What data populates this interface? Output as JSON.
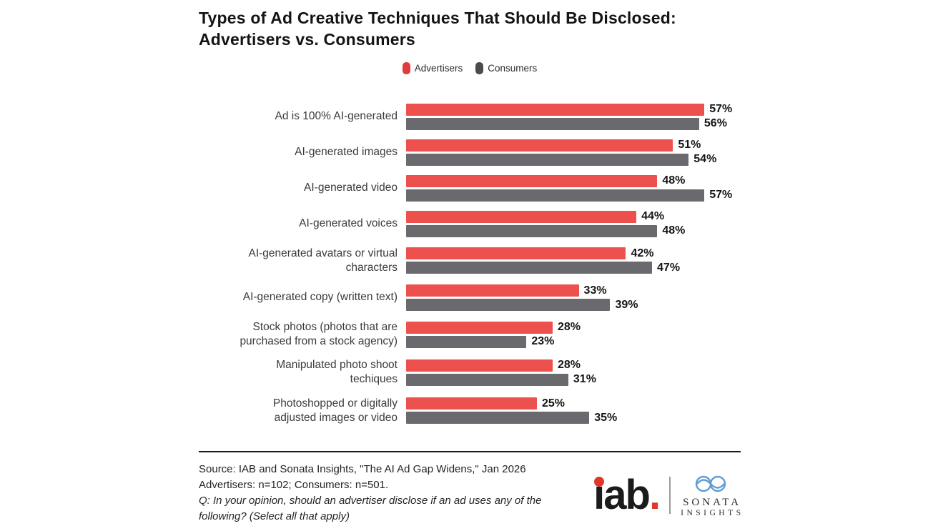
{
  "title": "Types of Ad Creative Techniques That Should Be Disclosed:\nAdvertisers vs. Consumers",
  "legend": [
    {
      "label": "Advertisers",
      "color": "#e13b3c"
    },
    {
      "label": "Consumers",
      "color": "#4b4a4e"
    }
  ],
  "chart_data": {
    "type": "bar",
    "orientation": "horizontal",
    "title": "Types of Ad Creative Techniques That Should Be Disclosed: Advertisers vs. Consumers",
    "categories": [
      "Ad is 100% AI-generated",
      "AI-generated images",
      "AI-generated video",
      "AI-generated voices",
      "AI-generated avatars or virtual\ncharacters",
      "AI-generated copy (written text)",
      "Stock photos (photos that are\npurchased from a stock agency)",
      "Manipulated photo shoot\ntechiques",
      "Photoshopped or digitally\nadjusted images or video"
    ],
    "series": [
      {
        "name": "Advertisers",
        "color": "#ec514e",
        "values": [
          57,
          51,
          48,
          44,
          42,
          33,
          28,
          28,
          25
        ]
      },
      {
        "name": "Consumers",
        "color": "#6a696d",
        "values": [
          56,
          54,
          57,
          48,
          47,
          39,
          23,
          31,
          35
        ]
      }
    ],
    "value_suffix": "%",
    "xlim": [
      0,
      60
    ],
    "grid": false,
    "legend_position": "top-center"
  },
  "footer": {
    "source_line1": "Source: IAB and Sonata Insights, \"The AI Ad Gap Widens,\" Jan 2026",
    "source_line2": "Advertisers: n=102; Consumers: n=501.",
    "question": "Q: In your opinion, should an advertiser disclose if an ad uses any of the following? (Select all that apply)"
  },
  "logos": {
    "iab_text": "iab",
    "iab_period": ".",
    "sonata_line1": "SONATA",
    "sonata_line2": "INSIGHTS",
    "iab_red": "#e2372c",
    "sonata_blue": "#5e9cd3"
  }
}
